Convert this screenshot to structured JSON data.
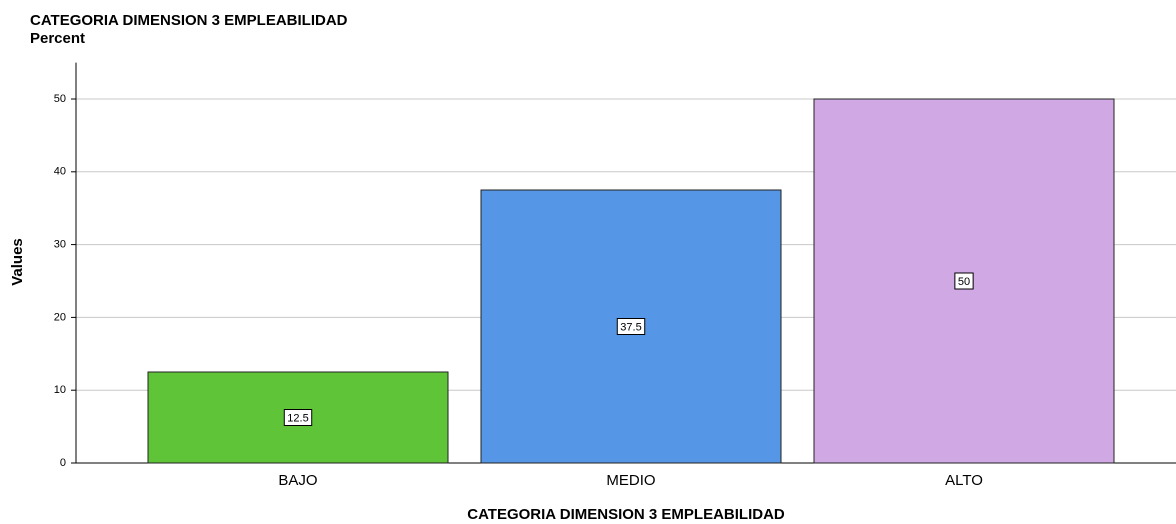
{
  "chart_data": {
    "type": "bar",
    "title": "CATEGORIA DIMENSION 3 EMPLEABILIDAD",
    "subtitle": "Percent",
    "y_label": "Values",
    "x_label": "CATEGORIA DIMENSION 3 EMPLEABILIDAD",
    "categories": [
      "BAJO",
      "MEDIO",
      "ALTO"
    ],
    "values": [
      12.5,
      37.5,
      50
    ],
    "colors": [
      "#5fc438",
      "#5596e6",
      "#d0a9e4"
    ],
    "ylim": [
      0,
      55
    ],
    "yticks": [
      0,
      10,
      20,
      30,
      40,
      50
    ],
    "grid": true
  }
}
